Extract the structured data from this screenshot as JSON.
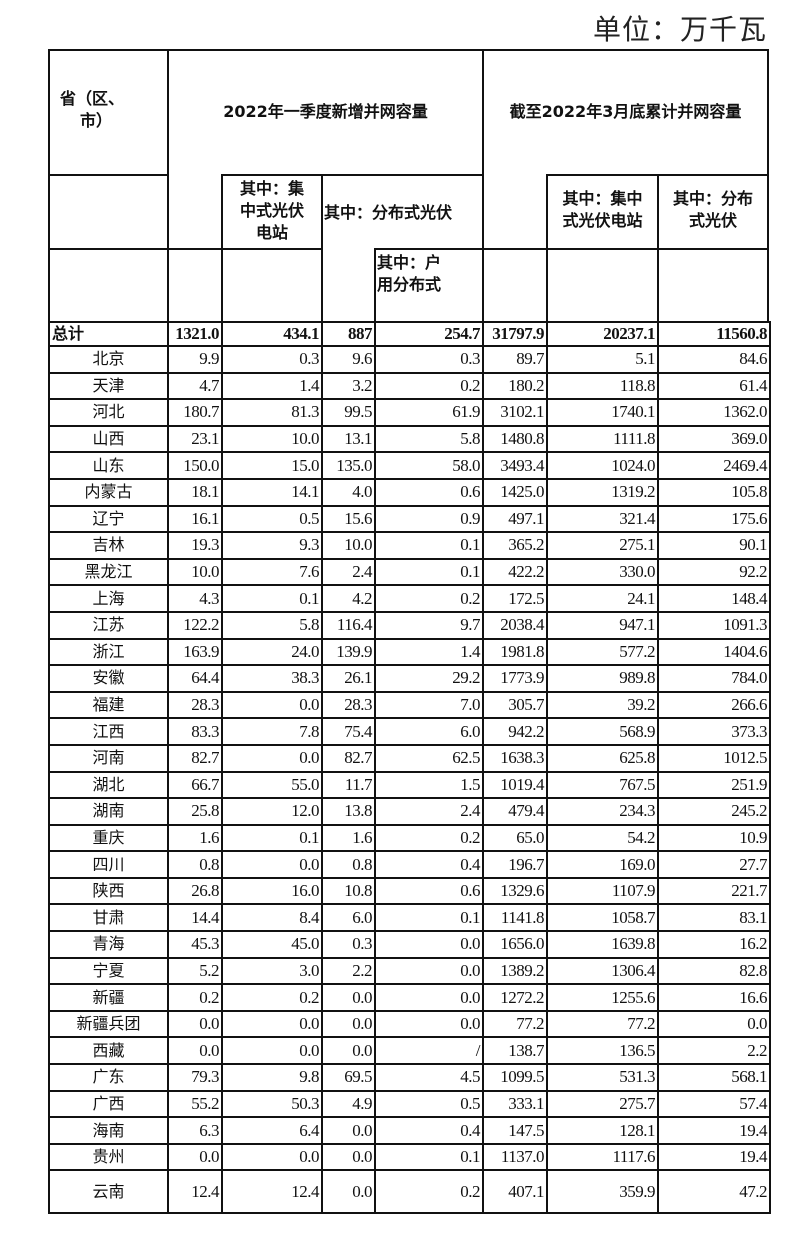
{
  "unit_label": "单位：万千瓦",
  "header": {
    "province": [
      "省（区、",
      "市）"
    ],
    "q1_new": "2022年一季度新增并网容量",
    "cumulative": "截至2022年3月底累计并网容量",
    "q1_centralized": [
      "其中：集",
      "中式光伏",
      "电站"
    ],
    "q1_distributed": "其中：分布式光伏",
    "q1_household": [
      "其中：户",
      "用分布式"
    ],
    "cum_centralized": [
      "其中：集中",
      "式光伏电站"
    ],
    "cum_distributed": [
      "其中：分布",
      "式光伏"
    ]
  },
  "total": [
    "总计",
    "1321.0",
    "434.1",
    "887",
    "254.7",
    "31797.9",
    "20237.1",
    "11560.8"
  ],
  "rows": [
    [
      "北京",
      "9.9",
      "0.3",
      "9.6",
      "0.3",
      "89.7",
      "5.1",
      "84.6"
    ],
    [
      "天津",
      "4.7",
      "1.4",
      "3.2",
      "0.2",
      "180.2",
      "118.8",
      "61.4"
    ],
    [
      "河北",
      "180.7",
      "81.3",
      "99.5",
      "61.9",
      "3102.1",
      "1740.1",
      "1362.0"
    ],
    [
      "山西",
      "23.1",
      "10.0",
      "13.1",
      "5.8",
      "1480.8",
      "1111.8",
      "369.0"
    ],
    [
      "山东",
      "150.0",
      "15.0",
      "135.0",
      "58.0",
      "3493.4",
      "1024.0",
      "2469.4"
    ],
    [
      "内蒙古",
      "18.1",
      "14.1",
      "4.0",
      "0.6",
      "1425.0",
      "1319.2",
      "105.8"
    ],
    [
      "辽宁",
      "16.1",
      "0.5",
      "15.6",
      "0.9",
      "497.1",
      "321.4",
      "175.6"
    ],
    [
      "吉林",
      "19.3",
      "9.3",
      "10.0",
      "0.1",
      "365.2",
      "275.1",
      "90.1"
    ],
    [
      "黑龙江",
      "10.0",
      "7.6",
      "2.4",
      "0.1",
      "422.2",
      "330.0",
      "92.2"
    ],
    [
      "上海",
      "4.3",
      "0.1",
      "4.2",
      "0.2",
      "172.5",
      "24.1",
      "148.4"
    ],
    [
      "江苏",
      "122.2",
      "5.8",
      "116.4",
      "9.7",
      "2038.4",
      "947.1",
      "1091.3"
    ],
    [
      "浙江",
      "163.9",
      "24.0",
      "139.9",
      "1.4",
      "1981.8",
      "577.2",
      "1404.6"
    ],
    [
      "安徽",
      "64.4",
      "38.3",
      "26.1",
      "29.2",
      "1773.9",
      "989.8",
      "784.0"
    ],
    [
      "福建",
      "28.3",
      "0.0",
      "28.3",
      "7.0",
      "305.7",
      "39.2",
      "266.6"
    ],
    [
      "江西",
      "83.3",
      "7.8",
      "75.4",
      "6.0",
      "942.2",
      "568.9",
      "373.3"
    ],
    [
      "河南",
      "82.7",
      "0.0",
      "82.7",
      "62.5",
      "1638.3",
      "625.8",
      "1012.5"
    ],
    [
      "湖北",
      "66.7",
      "55.0",
      "11.7",
      "1.5",
      "1019.4",
      "767.5",
      "251.9"
    ],
    [
      "湖南",
      "25.8",
      "12.0",
      "13.8",
      "2.4",
      "479.4",
      "234.3",
      "245.2"
    ],
    [
      "重庆",
      "1.6",
      "0.1",
      "1.6",
      "0.2",
      "65.0",
      "54.2",
      "10.9"
    ],
    [
      "四川",
      "0.8",
      "0.0",
      "0.8",
      "0.4",
      "196.7",
      "169.0",
      "27.7"
    ],
    [
      "陕西",
      "26.8",
      "16.0",
      "10.8",
      "0.6",
      "1329.6",
      "1107.9",
      "221.7"
    ],
    [
      "甘肃",
      "14.4",
      "8.4",
      "6.0",
      "0.1",
      "1141.8",
      "1058.7",
      "83.1"
    ],
    [
      "青海",
      "45.3",
      "45.0",
      "0.3",
      "0.0",
      "1656.0",
      "1639.8",
      "16.2"
    ],
    [
      "宁夏",
      "5.2",
      "3.0",
      "2.2",
      "0.0",
      "1389.2",
      "1306.4",
      "82.8"
    ],
    [
      "新疆",
      "0.2",
      "0.2",
      "0.0",
      "0.0",
      "1272.2",
      "1255.6",
      "16.6"
    ],
    [
      "新疆兵团",
      "0.0",
      "0.0",
      "0.0",
      "0.0",
      "77.2",
      "77.2",
      "0.0"
    ],
    [
      "西藏",
      "0.0",
      "0.0",
      "0.0",
      "/",
      "138.7",
      "136.5",
      "2.2"
    ],
    [
      "广东",
      "79.3",
      "9.8",
      "69.5",
      "4.5",
      "1099.5",
      "531.3",
      "568.1"
    ],
    [
      "广西",
      "55.2",
      "50.3",
      "4.9",
      "0.5",
      "333.1",
      "275.7",
      "57.4"
    ],
    [
      "海南",
      "6.3",
      "6.4",
      "0.0",
      "0.4",
      "147.5",
      "128.1",
      "19.4"
    ],
    [
      "贵州",
      "0.0",
      "0.0",
      "0.0",
      "0.1",
      "1137.0",
      "1117.6",
      "19.4"
    ],
    [
      "云南",
      "12.4",
      "12.4",
      "0.0",
      "0.2",
      "407.1",
      "359.9",
      "47.2"
    ]
  ]
}
